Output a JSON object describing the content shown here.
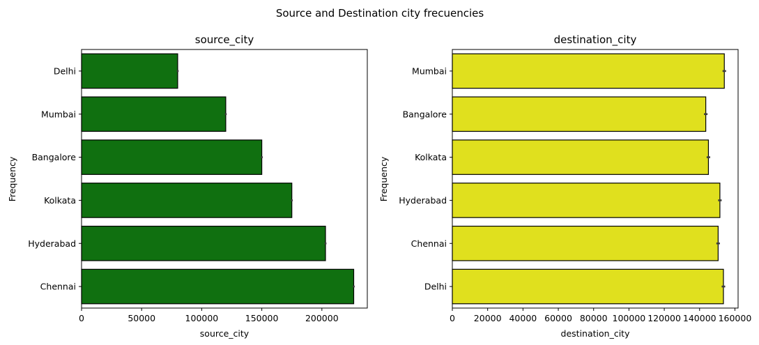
{
  "suptitle": "Source and Destination city frecuencies",
  "chart_data": [
    {
      "type": "bar",
      "orientation": "horizontal",
      "title": "source_city",
      "xlabel": "source_city",
      "ylabel": "Frequency",
      "categories": [
        "Delhi",
        "Mumbai",
        "Bangalore",
        "Kolkata",
        "Hyderabad",
        "Chennai"
      ],
      "values": [
        80000,
        120000,
        150000,
        175000,
        203000,
        226500
      ],
      "error": [
        800,
        800,
        800,
        800,
        800,
        800
      ],
      "xlim": [
        0,
        237800
      ],
      "xticks": [
        0,
        50000,
        100000,
        150000,
        200000
      ],
      "xtick_labels": [
        "0",
        "50000",
        "100000",
        "150000",
        "200000"
      ],
      "color": "#107010"
    },
    {
      "type": "bar",
      "orientation": "horizontal",
      "title": "destination_city",
      "xlabel": "destination_city",
      "ylabel": "Frequency",
      "categories": [
        "Mumbai",
        "Bangalore",
        "Kolkata",
        "Hyderabad",
        "Chennai",
        "Delhi"
      ],
      "values": [
        154000,
        143500,
        145000,
        151500,
        150500,
        153500
      ],
      "error": [
        1000,
        1000,
        1000,
        1000,
        1000,
        1000
      ],
      "xlim": [
        0,
        161800
      ],
      "xticks": [
        0,
        20000,
        40000,
        60000,
        80000,
        100000,
        120000,
        140000,
        160000
      ],
      "xtick_labels": [
        "0",
        "20000",
        "40000",
        "60000",
        "80000",
        "100000",
        "120000",
        "140000",
        "160000"
      ],
      "color": "#e0e01e"
    }
  ]
}
